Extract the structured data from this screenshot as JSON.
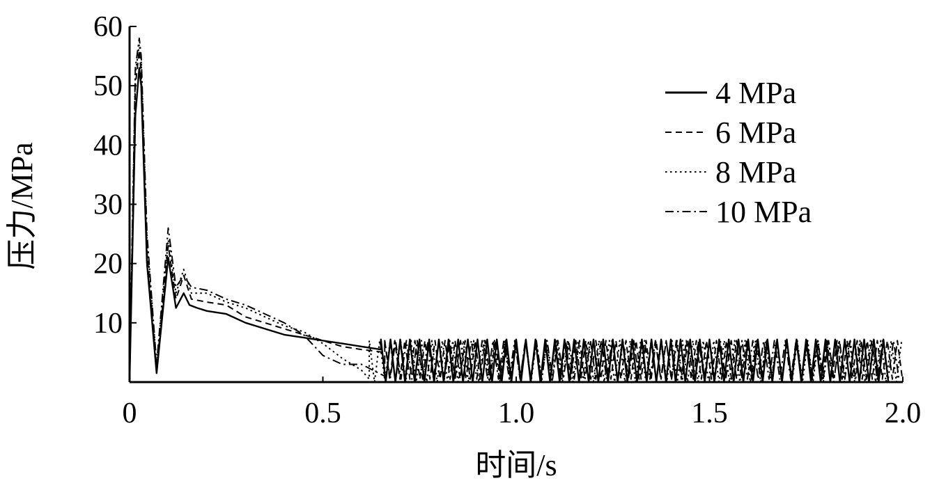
{
  "chart_data": {
    "type": "line",
    "title": "",
    "xlabel": "时间/s",
    "ylabel": "压力/MPa",
    "xlim": [
      0,
      2.0
    ],
    "ylim": [
      0,
      60
    ],
    "x_ticks": [
      "0",
      "0.5",
      "1.0",
      "1.5",
      "2.0"
    ],
    "y_ticks": [
      "10",
      "20",
      "30",
      "40",
      "50",
      "60"
    ],
    "grid": false,
    "legend_position": "top-right",
    "series": [
      {
        "name": "4 MPa",
        "style": "solid",
        "x": [
          0.0,
          0.015,
          0.025,
          0.03,
          0.045,
          0.07,
          0.1,
          0.12,
          0.14,
          0.155,
          0.175,
          0.2,
          0.25,
          0.3,
          0.35,
          0.4,
          0.45,
          0.5,
          0.55,
          0.6,
          0.65
        ],
        "y": [
          0,
          45,
          53,
          50,
          20,
          1.5,
          21,
          12.5,
          15,
          13,
          12.5,
          12,
          11.5,
          10,
          9,
          8,
          7.5,
          7,
          6.5,
          6,
          5.5
        ],
        "oscillation": {
          "start": 0.65,
          "end": 1.97,
          "period": 0.025,
          "min": 0,
          "max": 7.2
        }
      },
      {
        "name": "6 MPa",
        "style": "dashed",
        "x": [
          0.0,
          0.015,
          0.025,
          0.03,
          0.045,
          0.07,
          0.1,
          0.12,
          0.14,
          0.16,
          0.2,
          0.25,
          0.3,
          0.35,
          0.4,
          0.45,
          0.5,
          0.55,
          0.6,
          0.66
        ],
        "y": [
          0,
          50,
          56,
          52,
          22,
          2,
          23,
          14,
          18,
          14,
          13.5,
          13,
          11,
          10,
          9,
          8,
          7,
          6,
          5.5,
          5
        ],
        "oscillation": {
          "start": 0.66,
          "end": 2.0,
          "period": 0.026,
          "min": 0.5,
          "max": 7.0
        }
      },
      {
        "name": "8 MPa",
        "style": "dotted",
        "x": [
          0.0,
          0.015,
          0.025,
          0.03,
          0.045,
          0.07,
          0.1,
          0.12,
          0.14,
          0.16,
          0.2,
          0.25,
          0.3,
          0.35,
          0.4,
          0.45,
          0.5,
          0.55,
          0.6,
          0.62
        ],
        "y": [
          0,
          52,
          57,
          54,
          24,
          3,
          24,
          15,
          19,
          15,
          15,
          13.5,
          12.5,
          11,
          9.5,
          8.5,
          6.5,
          4,
          2,
          0.5
        ],
        "oscillation": {
          "start": 0.62,
          "end": 2.0,
          "period": 0.027,
          "min": 0,
          "max": 7.0
        }
      },
      {
        "name": "10 MPa",
        "style": "dashdot",
        "x": [
          0.0,
          0.015,
          0.025,
          0.03,
          0.045,
          0.07,
          0.1,
          0.12,
          0.14,
          0.16,
          0.2,
          0.25,
          0.3,
          0.35,
          0.4,
          0.45,
          0.5,
          0.55,
          0.6,
          0.63,
          0.66
        ],
        "y": [
          0,
          53,
          58,
          55,
          25,
          3,
          26,
          16,
          18,
          16,
          15.5,
          14,
          13,
          11.5,
          10,
          8,
          4.5,
          3,
          3,
          2,
          1
        ],
        "oscillation": {
          "start": 0.66,
          "end": 2.0,
          "period": 0.028,
          "min": 0.5,
          "max": 7.0
        }
      }
    ]
  }
}
